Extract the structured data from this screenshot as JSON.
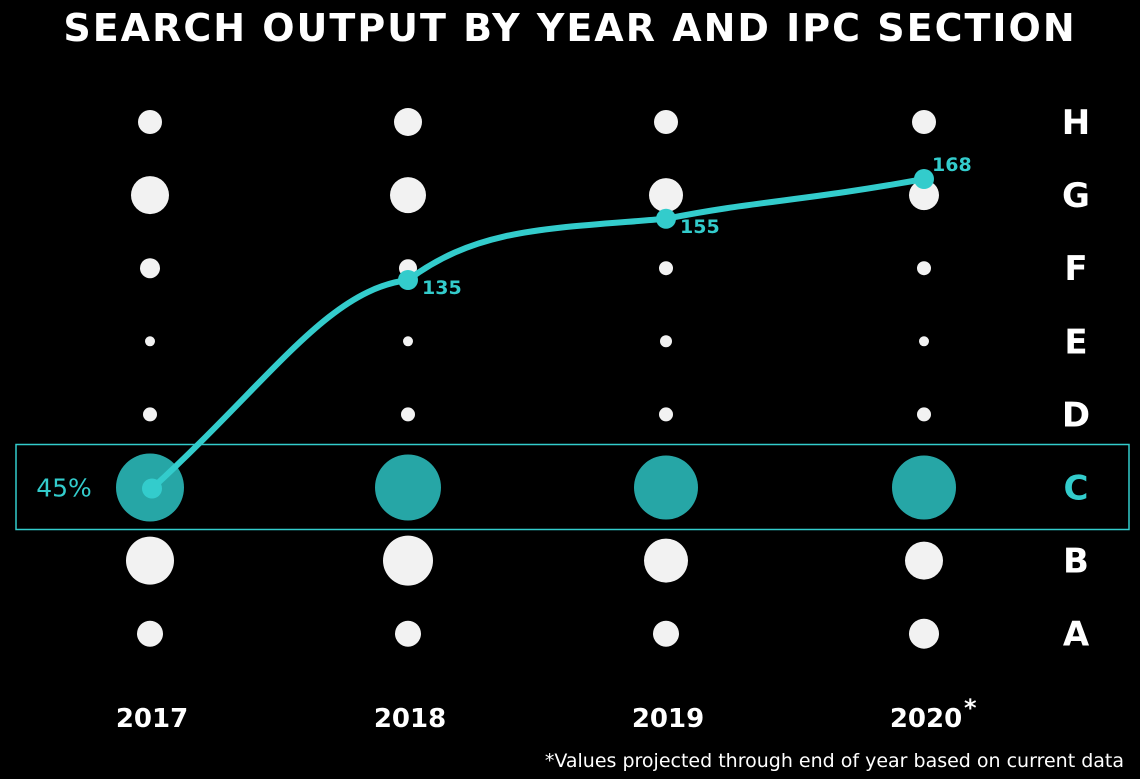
{
  "title": "SEARCH OUTPUT BY YEAR AND IPC SECTION",
  "footnote": "*Values projected through end of year based on current data",
  "colors": {
    "background": "#000000",
    "dots": "#f2f2f2",
    "accent": "#33cccc",
    "highlight_fill": "#26a6a6"
  },
  "chart_data": {
    "type": "scatter",
    "title": "SEARCH OUTPUT BY YEAR AND IPC SECTION",
    "x": [
      "2017",
      "2018",
      "2019",
      "2020"
    ],
    "x_marker": {
      "2020": "*"
    },
    "sections": [
      "H",
      "G",
      "F",
      "E",
      "D",
      "C",
      "B",
      "A"
    ],
    "highlight_section": "C",
    "highlight_label": "45%",
    "bubble_relative_size": {
      "H": [
        12,
        14,
        12,
        12
      ],
      "G": [
        19,
        18,
        17,
        15
      ],
      "F": [
        10,
        9,
        7,
        7
      ],
      "E": [
        5,
        5,
        6,
        5
      ],
      "D": [
        7,
        7,
        7,
        7
      ],
      "C": [
        34,
        33,
        32,
        32
      ],
      "B": [
        24,
        25,
        22,
        19
      ],
      "A": [
        13,
        13,
        13,
        15
      ]
    },
    "line_series": {
      "values": [
        null,
        135,
        155,
        168
      ],
      "value_labels": [
        "",
        "135",
        "155",
        "168"
      ]
    },
    "legend": "none",
    "grid": false
  }
}
